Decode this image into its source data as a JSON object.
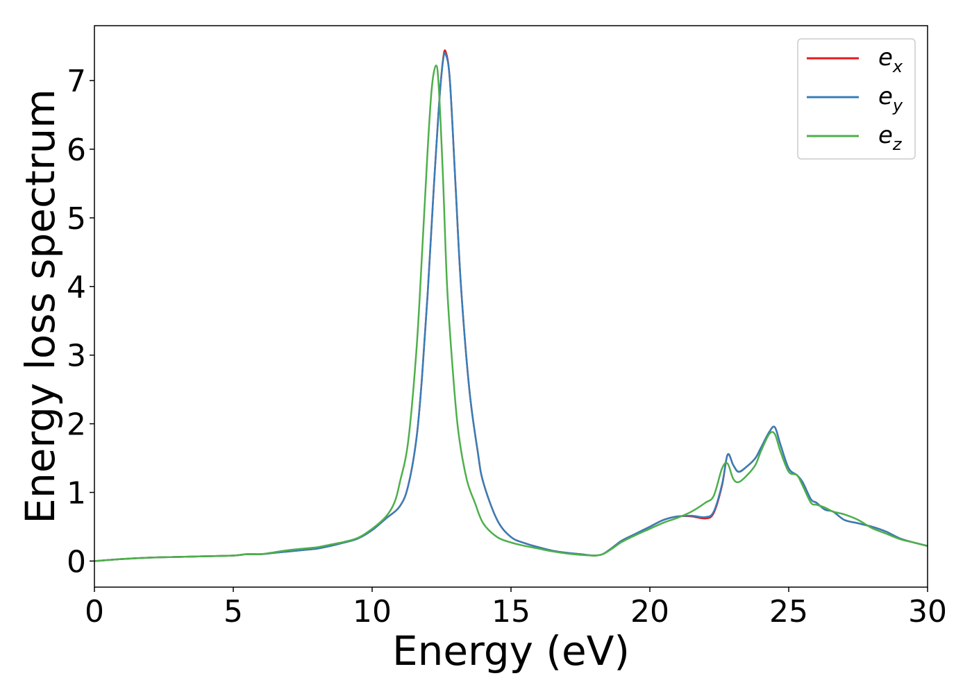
{
  "chart_data": {
    "type": "line",
    "xlabel": "Energy (eV)",
    "ylabel": "Energy loss spectrum",
    "xlim": [
      0,
      30
    ],
    "ylim": [
      -0.38,
      7.8
    ],
    "xticks": [
      0,
      5,
      10,
      15,
      20,
      25,
      30
    ],
    "yticks": [
      0,
      1,
      2,
      3,
      4,
      5,
      6,
      7
    ],
    "grid": false,
    "legend_position": "top-right",
    "series": [
      {
        "name": "e_x",
        "label_base": "e",
        "label_sub": "x",
        "color": "#e41a1c",
        "x": [
          0,
          1,
          2,
          3,
          4,
          5,
          5.5,
          6,
          6.5,
          7,
          7.5,
          8,
          8.5,
          9,
          9.5,
          10,
          10.5,
          11,
          11.3,
          11.6,
          11.8,
          12.0,
          12.2,
          12.4,
          12.55,
          12.65,
          12.8,
          13.0,
          13.2,
          13.5,
          13.8,
          14.0,
          14.5,
          15,
          15.5,
          16,
          16.5,
          17,
          17.5,
          18,
          18.3,
          18.6,
          19,
          19.5,
          20,
          20.5,
          21,
          21.5,
          22,
          22.3,
          22.6,
          22.8,
          23.0,
          23.2,
          23.5,
          23.8,
          24.0,
          24.3,
          24.5,
          24.7,
          25.0,
          25.3,
          25.5,
          25.8,
          26.0,
          26.3,
          26.6,
          27,
          27.5,
          28,
          28.5,
          29,
          29.5,
          30
        ],
        "y": [
          0.0,
          0.03,
          0.05,
          0.06,
          0.07,
          0.08,
          0.1,
          0.1,
          0.12,
          0.14,
          0.16,
          0.18,
          0.22,
          0.27,
          0.33,
          0.45,
          0.62,
          0.8,
          1.1,
          1.8,
          2.7,
          3.9,
          5.3,
          6.6,
          7.3,
          7.42,
          7.0,
          5.5,
          4.0,
          2.5,
          1.6,
          1.15,
          0.6,
          0.35,
          0.26,
          0.2,
          0.15,
          0.12,
          0.1,
          0.08,
          0.1,
          0.18,
          0.3,
          0.4,
          0.5,
          0.6,
          0.65,
          0.65,
          0.62,
          0.7,
          1.1,
          1.55,
          1.4,
          1.3,
          1.38,
          1.5,
          1.65,
          1.88,
          1.95,
          1.7,
          1.35,
          1.25,
          1.15,
          0.9,
          0.85,
          0.75,
          0.72,
          0.6,
          0.55,
          0.5,
          0.43,
          0.33,
          0.27,
          0.22
        ]
      },
      {
        "name": "e_y",
        "label_base": "e",
        "label_sub": "y",
        "color": "#377eb8",
        "x": [
          0,
          1,
          2,
          3,
          4,
          5,
          5.5,
          6,
          6.5,
          7,
          7.5,
          8,
          8.5,
          9,
          9.5,
          10,
          10.5,
          11,
          11.3,
          11.6,
          11.8,
          12.0,
          12.2,
          12.4,
          12.55,
          12.65,
          12.8,
          13.0,
          13.2,
          13.5,
          13.8,
          14.0,
          14.5,
          15,
          15.5,
          16,
          16.5,
          17,
          17.5,
          18,
          18.3,
          18.6,
          19,
          19.5,
          20,
          20.5,
          21,
          21.5,
          22,
          22.3,
          22.6,
          22.8,
          23.0,
          23.2,
          23.5,
          23.8,
          24.0,
          24.3,
          24.5,
          24.7,
          25.0,
          25.3,
          25.5,
          25.8,
          26.0,
          26.3,
          26.6,
          27,
          27.5,
          28,
          28.5,
          29,
          29.5,
          30
        ],
        "y": [
          0.0,
          0.03,
          0.05,
          0.06,
          0.07,
          0.08,
          0.1,
          0.1,
          0.12,
          0.14,
          0.16,
          0.18,
          0.22,
          0.27,
          0.33,
          0.45,
          0.62,
          0.8,
          1.1,
          1.8,
          2.7,
          3.9,
          5.3,
          6.6,
          7.28,
          7.38,
          7.0,
          5.5,
          4.0,
          2.5,
          1.6,
          1.15,
          0.6,
          0.35,
          0.26,
          0.2,
          0.15,
          0.12,
          0.1,
          0.08,
          0.1,
          0.18,
          0.3,
          0.4,
          0.5,
          0.6,
          0.65,
          0.66,
          0.64,
          0.72,
          1.12,
          1.55,
          1.4,
          1.3,
          1.38,
          1.5,
          1.65,
          1.88,
          1.95,
          1.7,
          1.35,
          1.25,
          1.15,
          0.9,
          0.85,
          0.75,
          0.72,
          0.6,
          0.55,
          0.5,
          0.43,
          0.33,
          0.27,
          0.22
        ]
      },
      {
        "name": "e_z",
        "label_base": "e",
        "label_sub": "z",
        "color": "#4daf4a",
        "x": [
          0,
          1,
          2,
          3,
          4,
          5,
          5.5,
          6,
          6.5,
          7,
          7.5,
          8,
          8.5,
          9,
          9.5,
          10,
          10.5,
          10.8,
          11.0,
          11.3,
          11.6,
          11.8,
          12.0,
          12.15,
          12.3,
          12.4,
          12.55,
          12.7,
          12.9,
          13.1,
          13.4,
          13.7,
          14.0,
          14.5,
          15,
          15.5,
          16,
          16.5,
          17,
          17.5,
          18,
          18.3,
          18.6,
          19,
          19.5,
          20,
          20.5,
          21,
          21.5,
          22,
          22.3,
          22.6,
          22.8,
          23.0,
          23.2,
          23.5,
          23.8,
          24.0,
          24.3,
          24.5,
          24.7,
          25.0,
          25.3,
          25.5,
          25.8,
          26.0,
          26.3,
          26.6,
          27,
          27.5,
          28,
          28.5,
          29,
          29.5,
          30
        ],
        "y": [
          0.0,
          0.03,
          0.05,
          0.06,
          0.07,
          0.08,
          0.1,
          0.1,
          0.13,
          0.16,
          0.18,
          0.2,
          0.24,
          0.28,
          0.34,
          0.47,
          0.65,
          0.85,
          1.15,
          1.75,
          3.1,
          4.5,
          6.0,
          6.9,
          7.22,
          6.9,
          5.6,
          4.0,
          2.8,
          1.9,
          1.2,
          0.85,
          0.55,
          0.35,
          0.27,
          0.22,
          0.18,
          0.14,
          0.11,
          0.09,
          0.08,
          0.1,
          0.17,
          0.28,
          0.38,
          0.47,
          0.56,
          0.63,
          0.72,
          0.85,
          0.95,
          1.35,
          1.42,
          1.2,
          1.15,
          1.25,
          1.4,
          1.6,
          1.85,
          1.85,
          1.6,
          1.3,
          1.25,
          1.1,
          0.85,
          0.82,
          0.78,
          0.72,
          0.68,
          0.6,
          0.48,
          0.4,
          0.32,
          0.27,
          0.22
        ]
      }
    ]
  }
}
